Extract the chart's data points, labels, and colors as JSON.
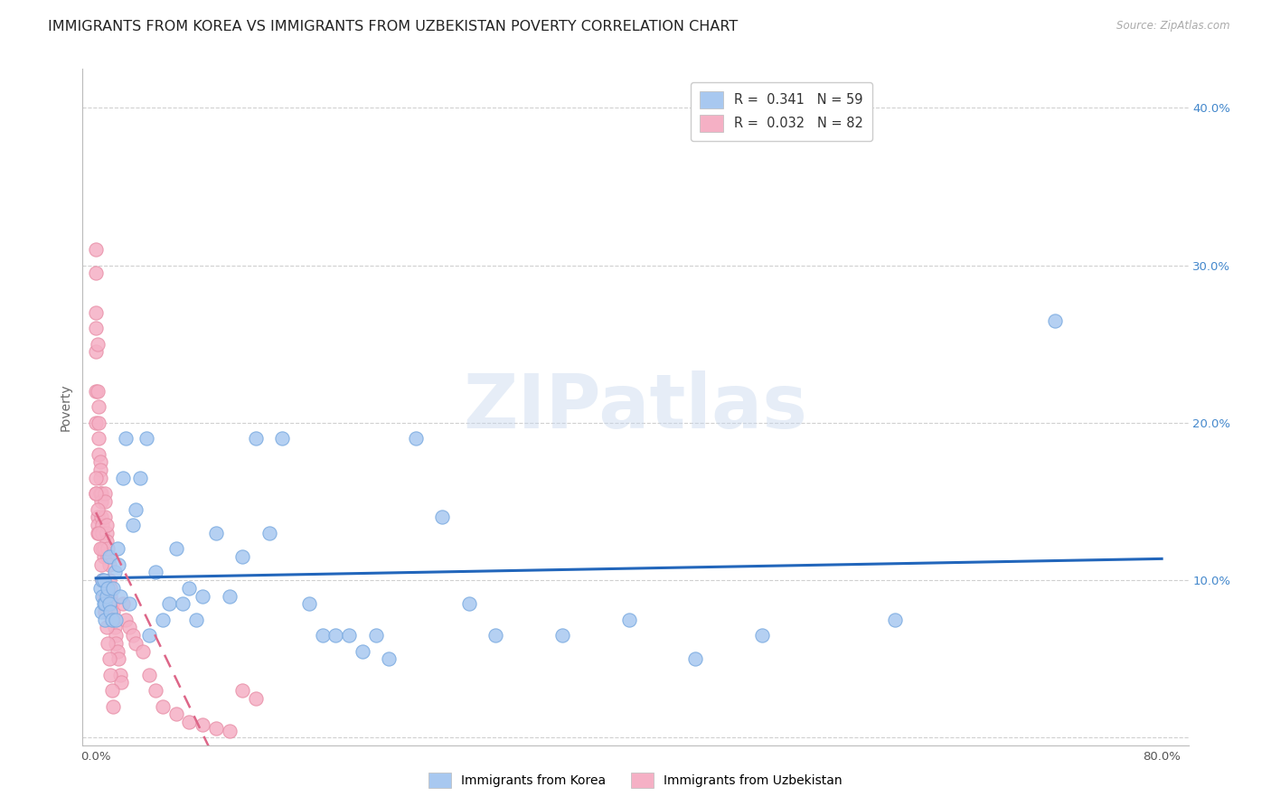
{
  "title": "IMMIGRANTS FROM KOREA VS IMMIGRANTS FROM UZBEKISTAN POVERTY CORRELATION CHART",
  "source": "Source: ZipAtlas.com",
  "ylabel": "Poverty",
  "watermark": "ZIPatlas",
  "korea_R": 0.341,
  "korea_N": 59,
  "uzbekistan_R": 0.032,
  "uzbekistan_N": 82,
  "xlim": [
    -0.01,
    0.82
  ],
  "ylim": [
    -0.005,
    0.425
  ],
  "xticks": [
    0.0,
    0.1,
    0.2,
    0.3,
    0.4,
    0.5,
    0.6,
    0.7,
    0.8
  ],
  "xticklabels": [
    "0.0%",
    "",
    "",
    "",
    "",
    "",
    "",
    "",
    "80.0%"
  ],
  "yticks": [
    0.0,
    0.1,
    0.2,
    0.3,
    0.4
  ],
  "yticklabels_right": [
    "",
    "10.0%",
    "20.0%",
    "30.0%",
    "40.0%"
  ],
  "korea_color": "#a8c8f0",
  "uzbekistan_color": "#f5b0c5",
  "korea_edge": "#7aaae0",
  "uzbekistan_edge": "#e890a8",
  "korea_line_color": "#2266bb",
  "uzbekistan_line_color": "#dd6688",
  "background_color": "#ffffff",
  "grid_color": "#d0d0d0",
  "title_fontsize": 11.5,
  "tick_fontsize": 9.5,
  "legend_fontsize": 10.5,
  "korea_x": [
    0.003,
    0.004,
    0.005,
    0.005,
    0.006,
    0.006,
    0.007,
    0.007,
    0.008,
    0.009,
    0.01,
    0.01,
    0.011,
    0.012,
    0.013,
    0.014,
    0.015,
    0.016,
    0.017,
    0.018,
    0.02,
    0.022,
    0.025,
    0.028,
    0.03,
    0.033,
    0.038,
    0.04,
    0.045,
    0.05,
    0.055,
    0.06,
    0.065,
    0.07,
    0.075,
    0.08,
    0.09,
    0.1,
    0.11,
    0.12,
    0.13,
    0.14,
    0.16,
    0.17,
    0.18,
    0.19,
    0.2,
    0.21,
    0.22,
    0.24,
    0.26,
    0.28,
    0.3,
    0.35,
    0.4,
    0.45,
    0.5,
    0.6,
    0.72
  ],
  "korea_y": [
    0.095,
    0.08,
    0.09,
    0.1,
    0.085,
    0.1,
    0.075,
    0.085,
    0.09,
    0.095,
    0.085,
    0.115,
    0.08,
    0.075,
    0.095,
    0.105,
    0.075,
    0.12,
    0.11,
    0.09,
    0.165,
    0.19,
    0.085,
    0.135,
    0.145,
    0.165,
    0.19,
    0.065,
    0.105,
    0.075,
    0.085,
    0.12,
    0.085,
    0.095,
    0.075,
    0.09,
    0.13,
    0.09,
    0.115,
    0.19,
    0.13,
    0.19,
    0.085,
    0.065,
    0.065,
    0.065,
    0.055,
    0.065,
    0.05,
    0.19,
    0.14,
    0.085,
    0.065,
    0.065,
    0.075,
    0.05,
    0.065,
    0.075,
    0.265
  ],
  "uzbekistan_x": [
    0.0,
    0.0,
    0.0,
    0.0,
    0.0,
    0.0,
    0.0,
    0.0,
    0.001,
    0.001,
    0.001,
    0.001,
    0.001,
    0.002,
    0.002,
    0.002,
    0.002,
    0.003,
    0.003,
    0.003,
    0.003,
    0.004,
    0.004,
    0.004,
    0.005,
    0.005,
    0.005,
    0.006,
    0.006,
    0.007,
    0.007,
    0.007,
    0.008,
    0.008,
    0.008,
    0.009,
    0.009,
    0.01,
    0.01,
    0.011,
    0.011,
    0.012,
    0.013,
    0.013,
    0.014,
    0.015,
    0.015,
    0.016,
    0.017,
    0.018,
    0.019,
    0.02,
    0.022,
    0.025,
    0.028,
    0.03,
    0.035,
    0.04,
    0.045,
    0.05,
    0.06,
    0.07,
    0.08,
    0.09,
    0.1,
    0.11,
    0.12,
    0.0,
    0.0,
    0.001,
    0.002,
    0.003,
    0.004,
    0.005,
    0.006,
    0.007,
    0.008,
    0.009,
    0.01,
    0.011,
    0.012,
    0.013
  ],
  "uzbekistan_y": [
    0.31,
    0.295,
    0.27,
    0.26,
    0.245,
    0.22,
    0.2,
    0.155,
    0.14,
    0.135,
    0.25,
    0.22,
    0.13,
    0.21,
    0.2,
    0.19,
    0.18,
    0.175,
    0.17,
    0.165,
    0.155,
    0.155,
    0.15,
    0.14,
    0.135,
    0.13,
    0.12,
    0.115,
    0.12,
    0.155,
    0.15,
    0.14,
    0.13,
    0.125,
    0.135,
    0.115,
    0.12,
    0.11,
    0.1,
    0.095,
    0.09,
    0.085,
    0.08,
    0.075,
    0.07,
    0.065,
    0.06,
    0.055,
    0.05,
    0.04,
    0.035,
    0.085,
    0.075,
    0.07,
    0.065,
    0.06,
    0.055,
    0.04,
    0.03,
    0.02,
    0.015,
    0.01,
    0.008,
    0.006,
    0.004,
    0.03,
    0.025,
    0.165,
    0.155,
    0.145,
    0.13,
    0.12,
    0.11,
    0.1,
    0.09,
    0.08,
    0.07,
    0.06,
    0.05,
    0.04,
    0.03,
    0.02
  ]
}
